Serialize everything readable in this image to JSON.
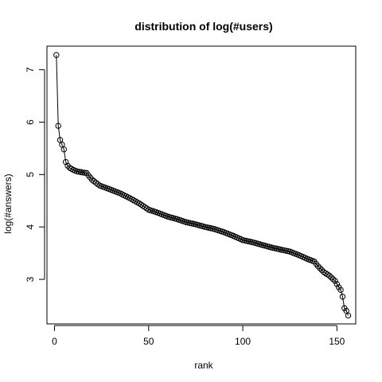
{
  "chart_data": {
    "type": "line",
    "title": "distribution of log(#users)",
    "xlabel": "rank",
    "ylabel": "log(#answers)",
    "xlim": [
      -4,
      160
    ],
    "ylim": [
      2.15,
      7.45
    ],
    "xticks": [
      0,
      50,
      100,
      150
    ],
    "yticks": [
      3,
      4,
      5,
      6,
      7
    ],
    "grid": false,
    "legend": "none",
    "marker": "open-circle",
    "anchors": [
      [
        1,
        7.28
      ],
      [
        2,
        5.93
      ],
      [
        3,
        5.66
      ],
      [
        4,
        5.57
      ],
      [
        5,
        5.48
      ],
      [
        6,
        5.24
      ],
      [
        7,
        5.17
      ],
      [
        8,
        5.13
      ],
      [
        10,
        5.09
      ],
      [
        12,
        5.06
      ],
      [
        15,
        5.04
      ],
      [
        17,
        5.03
      ],
      [
        20,
        4.9
      ],
      [
        24,
        4.79
      ],
      [
        30,
        4.71
      ],
      [
        35,
        4.64
      ],
      [
        40,
        4.55
      ],
      [
        45,
        4.45
      ],
      [
        50,
        4.33
      ],
      [
        55,
        4.27
      ],
      [
        60,
        4.2
      ],
      [
        65,
        4.15
      ],
      [
        70,
        4.09
      ],
      [
        75,
        4.05
      ],
      [
        80,
        4.0
      ],
      [
        85,
        3.96
      ],
      [
        90,
        3.9
      ],
      [
        95,
        3.83
      ],
      [
        100,
        3.75
      ],
      [
        105,
        3.71
      ],
      [
        110,
        3.66
      ],
      [
        115,
        3.61
      ],
      [
        120,
        3.57
      ],
      [
        125,
        3.53
      ],
      [
        130,
        3.46
      ],
      [
        135,
        3.38
      ],
      [
        138,
        3.34
      ],
      [
        140,
        3.25
      ],
      [
        143,
        3.14
      ],
      [
        146,
        3.07
      ],
      [
        149,
        2.97
      ],
      [
        151,
        2.85
      ],
      [
        152,
        2.8
      ],
      [
        153,
        2.67
      ],
      [
        154,
        2.45
      ],
      [
        155,
        2.4
      ],
      [
        156,
        2.31
      ]
    ]
  }
}
